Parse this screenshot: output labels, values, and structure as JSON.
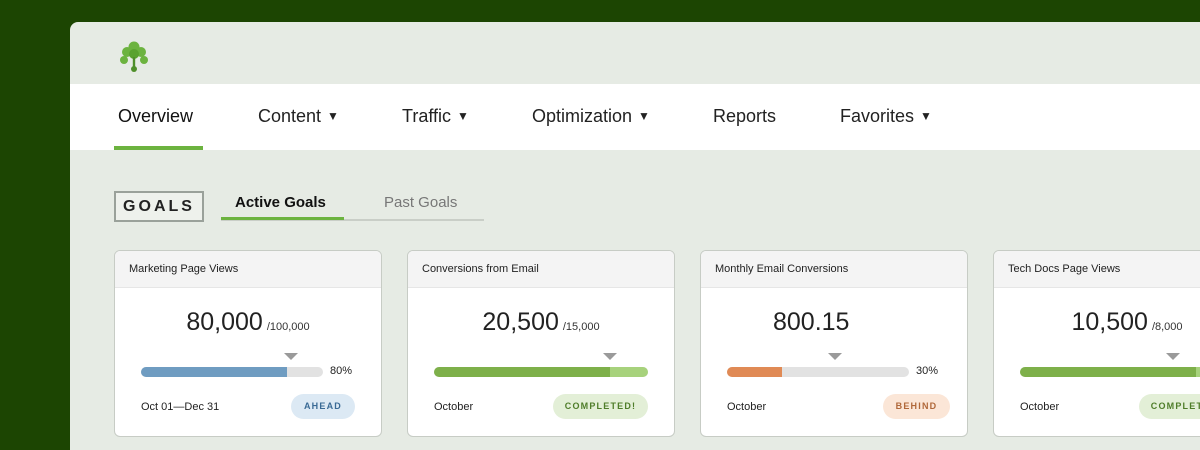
{
  "app": {
    "logo": "leaf-logo-icon"
  },
  "nav": {
    "items": [
      {
        "label": "Overview",
        "active": true,
        "dropdown": false
      },
      {
        "label": "Content",
        "active": false,
        "dropdown": true
      },
      {
        "label": "Traffic",
        "active": false,
        "dropdown": true
      },
      {
        "label": "Optimization",
        "active": false,
        "dropdown": true
      },
      {
        "label": "Reports",
        "active": false,
        "dropdown": false
      },
      {
        "label": "Favorites",
        "active": false,
        "dropdown": true
      }
    ],
    "caret": "▼"
  },
  "goals": {
    "badge": "GOALS",
    "tabs": [
      {
        "label": "Active Goals",
        "active": true
      },
      {
        "label": "Past Goals",
        "active": false
      }
    ],
    "cards": [
      {
        "title": "Marketing Page Views",
        "value": "80,000",
        "target": "/100,000",
        "progress": 0.8,
        "progress_label": "80%",
        "period": "Oct 01—Dec 31",
        "status": "AHEAD",
        "status_bg": "#dce9f4",
        "status_color": "#3a6a95",
        "fill_color": "#6f9cc1"
      },
      {
        "title": "Conversions from Email",
        "value": "20,500",
        "target": "/15,000",
        "progress": 1.0,
        "progress_label": "",
        "period": "October",
        "status": "COMPLETED!",
        "status_bg": "#e3efd7",
        "status_color": "#4f7d2a",
        "fill_color": "#7eb04a"
      },
      {
        "title": "Monthly Email Conversions",
        "value": "800.15",
        "target": "",
        "progress": 0.3,
        "progress_label": "30%",
        "period": "October",
        "status": "BEHIND",
        "status_bg": "#fbe6d7",
        "status_color": "#b0683a",
        "fill_color": "#e08a55"
      },
      {
        "title": "Tech Docs Page Views",
        "value": "10,500",
        "target": "/8,000",
        "progress": 1.0,
        "progress_label": "",
        "period": "October",
        "status": "COMPLETED!",
        "status_bg": "#e3efd7",
        "status_color": "#4f7d2a",
        "fill_color": "#7eb04a"
      }
    ]
  }
}
